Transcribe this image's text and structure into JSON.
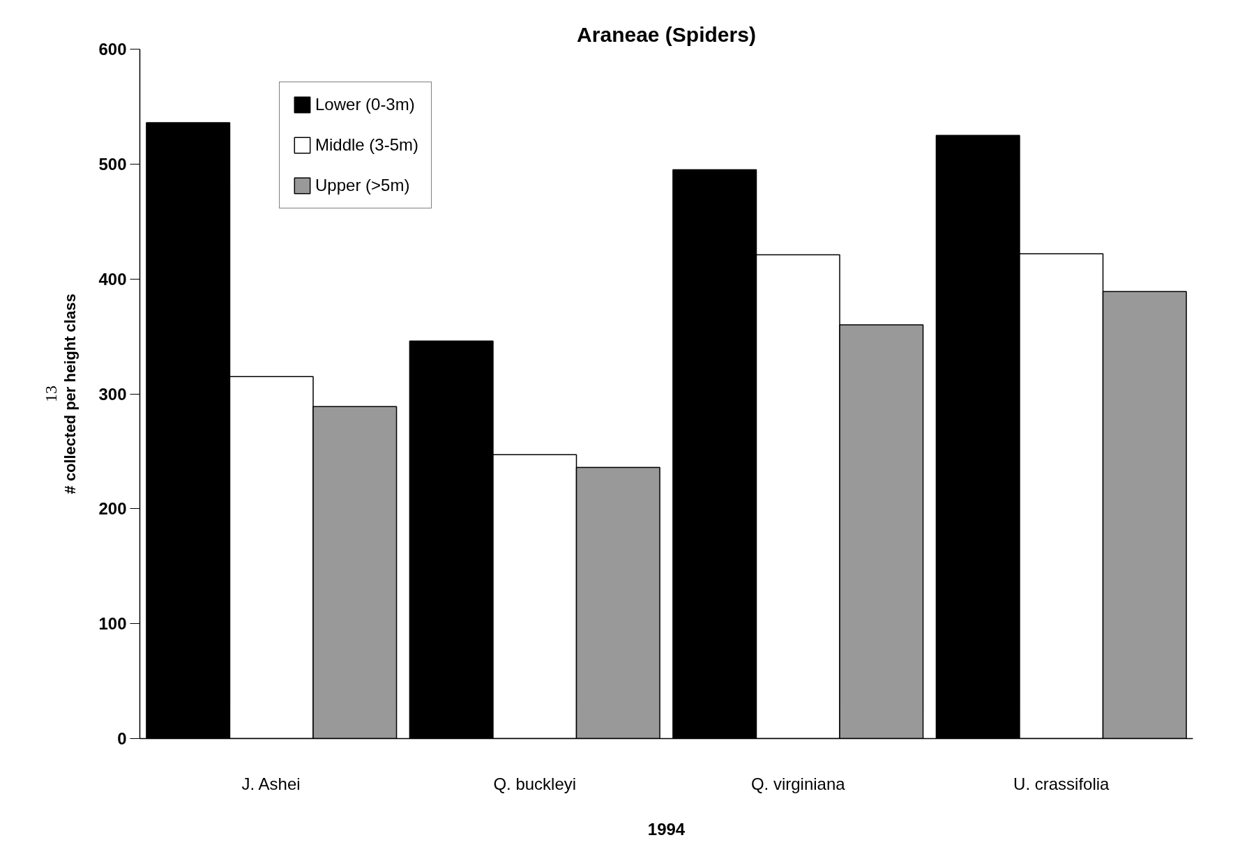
{
  "chart_data": {
    "type": "bar",
    "title": "Araneae (Spiders)",
    "xlabel": "1994",
    "ylabel": "# collected per height class",
    "categories": [
      "J. Ashei",
      "Q. buckleyi",
      "Q. virginiana",
      "U. crassifolia"
    ],
    "series": [
      {
        "name": "Lower (0-3m)",
        "color": "#000000",
        "values": [
          536,
          346,
          495,
          525
        ]
      },
      {
        "name": "Middle (3-5m)",
        "color": "#ffffff",
        "values": [
          315,
          247,
          421,
          422
        ]
      },
      {
        "name": "Upper (>5m)",
        "color": "#999999",
        "values": [
          289,
          236,
          360,
          389
        ]
      }
    ],
    "ylim": [
      0,
      600
    ],
    "yticks": [
      0,
      100,
      200,
      300,
      400,
      500,
      600
    ],
    "grid": false,
    "legend": "top left",
    "annotations": [
      "13"
    ]
  }
}
